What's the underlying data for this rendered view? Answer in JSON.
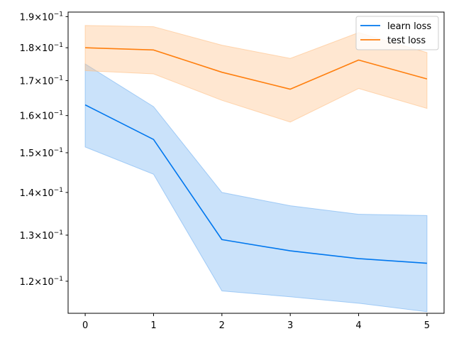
{
  "chart_data": {
    "type": "line",
    "x": [
      0,
      1,
      2,
      3,
      4,
      5
    ],
    "xlim": [
      -0.25,
      5.25
    ],
    "ylim": [
      0.1135,
      0.1915
    ],
    "yscale": "log",
    "grid": false,
    "legend_position": "top-right",
    "xticks": [
      {
        "value": 0,
        "label": "0"
      },
      {
        "value": 1,
        "label": "1"
      },
      {
        "value": 2,
        "label": "2"
      },
      {
        "value": 3,
        "label": "3"
      },
      {
        "value": 4,
        "label": "4"
      },
      {
        "value": 5,
        "label": "5"
      }
    ],
    "yticks": [
      {
        "value": 0.12,
        "mantissa": "1.2",
        "exponent": "−1"
      },
      {
        "value": 0.13,
        "mantissa": "1.3",
        "exponent": "−1"
      },
      {
        "value": 0.14,
        "mantissa": "1.4",
        "exponent": "−1"
      },
      {
        "value": 0.15,
        "mantissa": "1.5",
        "exponent": "−1"
      },
      {
        "value": 0.16,
        "mantissa": "1.6",
        "exponent": "−1"
      },
      {
        "value": 0.17,
        "mantissa": "1.7",
        "exponent": "−1"
      },
      {
        "value": 0.18,
        "mantissa": "1.8",
        "exponent": "−1"
      },
      {
        "value": 0.19,
        "mantissa": "1.9",
        "exponent": "−1"
      }
    ],
    "series": [
      {
        "name": "learn loss",
        "color": "#0077ee",
        "band_color": "#74b3f2",
        "values": [
          0.163,
          0.1535,
          0.129,
          0.1265,
          0.1248,
          0.1238
        ],
        "upper": [
          0.175,
          0.1625,
          0.14,
          0.1368,
          0.1348,
          0.1345
        ],
        "lower": [
          0.1515,
          0.1445,
          0.118,
          0.1168,
          0.1155,
          0.1138
        ]
      },
      {
        "name": "test loss",
        "color": "#ff7f0e",
        "band_color": "#ffbf86",
        "values": [
          0.18,
          0.1793,
          0.1725,
          0.1675,
          0.1762,
          0.1705
        ],
        "upper": [
          0.1871,
          0.1867,
          0.1808,
          0.1767,
          0.1848,
          0.1785
        ],
        "lower": [
          0.173,
          0.172,
          0.1643,
          0.1582,
          0.1677,
          0.162
        ]
      }
    ]
  }
}
